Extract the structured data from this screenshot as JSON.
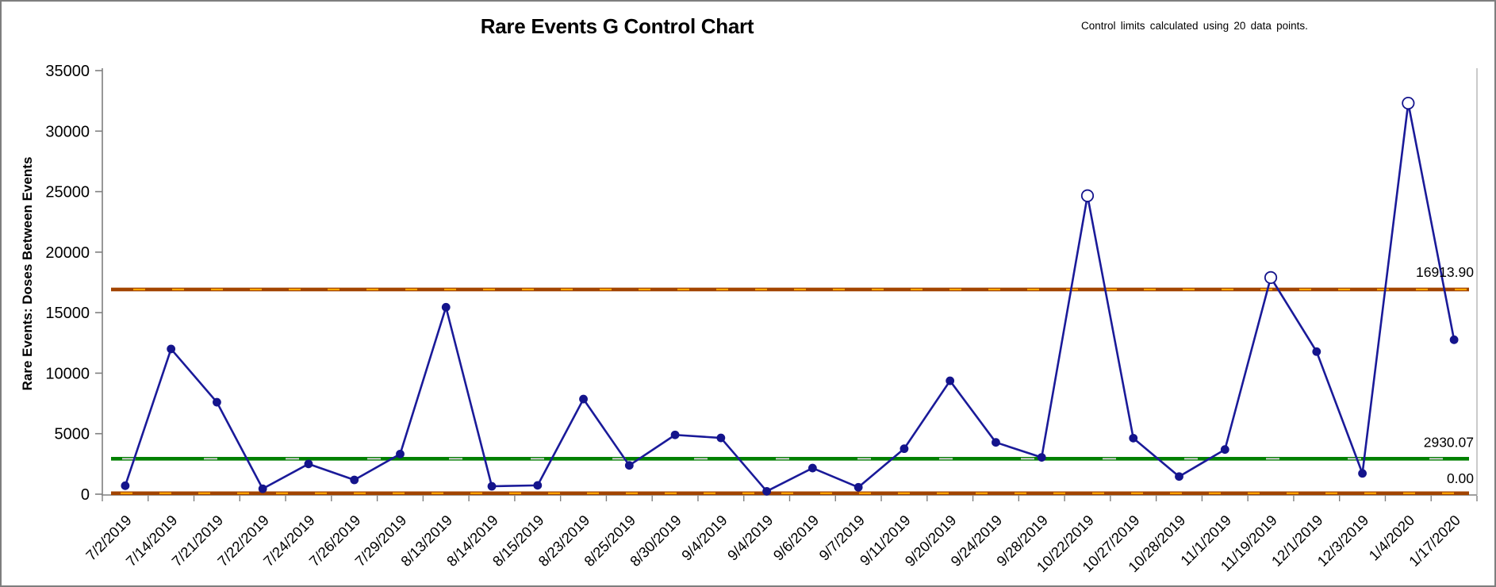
{
  "header": {
    "title": "Rare Events G Control Chart",
    "subtitle": "Control limits calculated using 20 data points."
  },
  "chart_data": {
    "type": "line",
    "title": "Rare Events G Control Chart",
    "subtitle": "Control limits calculated using 20 data points.",
    "xlabel": "",
    "ylabel": "Rare Events: Doses Between Events",
    "ylim": [
      0,
      35000
    ],
    "ytick_interval": 5000,
    "yticks": [
      0,
      5000,
      10000,
      15000,
      20000,
      25000,
      30000,
      35000
    ],
    "grid": false,
    "legend": "none",
    "categories": [
      "7/2/2019",
      "7/14/2019",
      "7/21/2019",
      "7/22/2019",
      "7/24/2019",
      "7/26/2019",
      "7/29/2019",
      "8/13/2019",
      "8/14/2019",
      "8/15/2019",
      "8/23/2019",
      "8/25/2019",
      "8/30/2019",
      "9/4/2019",
      "9/4/2019",
      "9/6/2019",
      "9/7/2019",
      "9/11/2019",
      "9/20/2019",
      "9/24/2019",
      "9/28/2019",
      "10/22/2019",
      "10/27/2019",
      "10/28/2019",
      "11/1/2019",
      "11/19/2019",
      "12/1/2019",
      "12/3/2019",
      "1/4/2020",
      "1/17/2020"
    ],
    "series": [
      {
        "name": "Doses Between Events",
        "values": [
          700,
          12000,
          7600,
          450,
          2500,
          1180,
          3320,
          15450,
          655,
          730,
          7860,
          2380,
          4900,
          4650,
          240,
          2160,
          570,
          3760,
          9370,
          4280,
          3040,
          24660,
          4630,
          1460,
          3690,
          17900,
          11780,
          1720,
          32310,
          12760
        ]
      }
    ],
    "control_limits": {
      "ucl": {
        "value": 16913.9,
        "label": "16913.90"
      },
      "center": {
        "value": 2930.07,
        "label": "2930.07"
      },
      "lcl": {
        "value": 0.0,
        "label": "0.00"
      }
    },
    "out_of_control_rule": "points above UCL drawn as open circles",
    "colors": {
      "series_line": "#1a1a99",
      "marker_fill": "#14148c",
      "ooc_marker_fill": "#ffffff",
      "limit_line": "#a24400",
      "limit_dash": "#ffa500",
      "center_line": "#008000",
      "center_dash": "#c9c9c9",
      "axis": "#7f7f7f",
      "text": "#000000"
    }
  }
}
